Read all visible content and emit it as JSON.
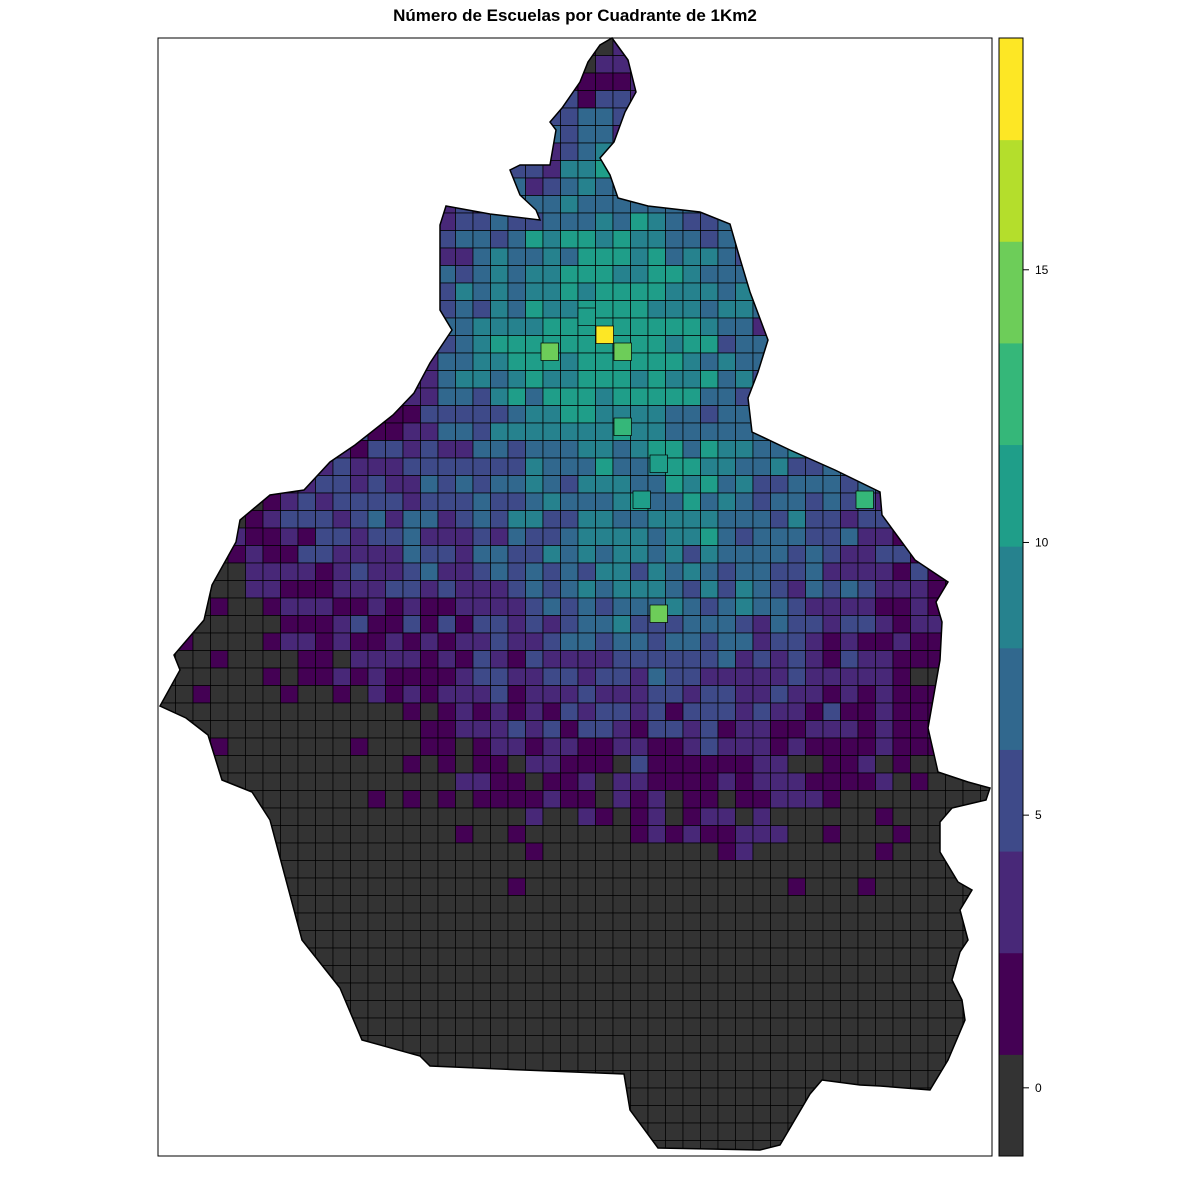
{
  "title": "Número de Escuelas por Cuadrante de 1Km2",
  "legend": {
    "ticks": [
      {
        "value": 0,
        "label": "0"
      },
      {
        "value": 5,
        "label": "5"
      },
      {
        "value": 10,
        "label": "10"
      },
      {
        "value": 15,
        "label": "15"
      }
    ],
    "range": [
      -1.25,
      19.25
    ],
    "colors": [
      "#333333",
      "#440154",
      "#482878",
      "#3E4A89",
      "#31688E",
      "#26828E",
      "#1F9E89",
      "#35B779",
      "#6DCD59",
      "#B4DE2C",
      "#FDE725"
    ]
  },
  "grid_cell_count_hint": "choropleth"
}
